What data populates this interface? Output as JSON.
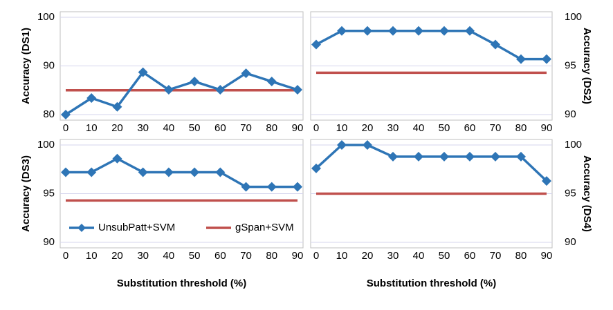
{
  "chart_data": [
    {
      "type": "line",
      "ylabel": "Accuracy (DS1)",
      "y_axis_side": "left",
      "categories": [
        "0",
        "10",
        "20",
        "30",
        "40",
        "50",
        "60",
        "70",
        "80",
        "90"
      ],
      "ylim": [
        80,
        100
      ],
      "yticks": [
        80,
        90,
        100
      ],
      "grid": true,
      "series": [
        {
          "color": "#2e75b6",
          "marker": "diamond",
          "values": [
            80,
            83.4,
            81.6,
            88.7,
            85.1,
            86.8,
            85.1,
            88.5,
            86.8,
            85.1
          ]
        },
        {
          "color": "#c0504d",
          "marker": "none",
          "values": [
            85,
            85,
            85,
            85,
            85,
            85,
            85,
            85,
            85,
            85
          ]
        }
      ]
    },
    {
      "type": "line",
      "ylabel": "Accuracy (DS2)",
      "y_axis_side": "right",
      "categories": [
        "0",
        "10",
        "20",
        "30",
        "40",
        "50",
        "60",
        "70",
        "80",
        "90"
      ],
      "ylim": [
        90,
        100
      ],
      "yticks": [
        90,
        95,
        100
      ],
      "grid": true,
      "series": [
        {
          "color": "#2e75b6",
          "marker": "diamond",
          "values": [
            97.2,
            98.6,
            98.6,
            98.6,
            98.6,
            98.6,
            98.6,
            97.2,
            95.7,
            95.7
          ]
        },
        {
          "color": "#c0504d",
          "marker": "none",
          "values": [
            94.3,
            94.3,
            94.3,
            94.3,
            94.3,
            94.3,
            94.3,
            94.3,
            94.3,
            94.3
          ]
        }
      ]
    },
    {
      "type": "line",
      "ylabel": "Accuracy (DS3)",
      "y_axis_side": "left",
      "xlabel": "Substitution threshold (%)",
      "categories": [
        "0",
        "10",
        "20",
        "30",
        "40",
        "50",
        "60",
        "70",
        "80",
        "90"
      ],
      "ylim": [
        90,
        100
      ],
      "yticks": [
        90,
        95,
        100
      ],
      "grid": true,
      "legend": "lower left",
      "series": [
        {
          "name": "UnsubPatt+SVM",
          "color": "#2e75b6",
          "marker": "diamond",
          "values": [
            97.2,
            97.2,
            98.6,
            97.2,
            97.2,
            97.2,
            97.2,
            95.7,
            95.7,
            95.7
          ]
        },
        {
          "name": "gSpan+SVM",
          "color": "#c0504d",
          "marker": "none",
          "values": [
            94.3,
            94.3,
            94.3,
            94.3,
            94.3,
            94.3,
            94.3,
            94.3,
            94.3,
            94.3
          ]
        }
      ]
    },
    {
      "type": "line",
      "ylabel": "Accuracy (DS4)",
      "y_axis_side": "right",
      "xlabel": "Substitution threshold (%)",
      "categories": [
        "0",
        "10",
        "20",
        "30",
        "40",
        "50",
        "60",
        "70",
        "80",
        "90"
      ],
      "ylim": [
        90,
        100
      ],
      "yticks": [
        90,
        95,
        100
      ],
      "grid": true,
      "series": [
        {
          "color": "#2e75b6",
          "marker": "diamond",
          "values": [
            97.6,
            100,
            100,
            98.8,
            98.8,
            98.8,
            98.8,
            98.8,
            98.8,
            96.3
          ]
        },
        {
          "color": "#c0504d",
          "marker": "none",
          "values": [
            95,
            95,
            95,
            95,
            95,
            95,
            95,
            95,
            95,
            95
          ]
        }
      ]
    }
  ]
}
